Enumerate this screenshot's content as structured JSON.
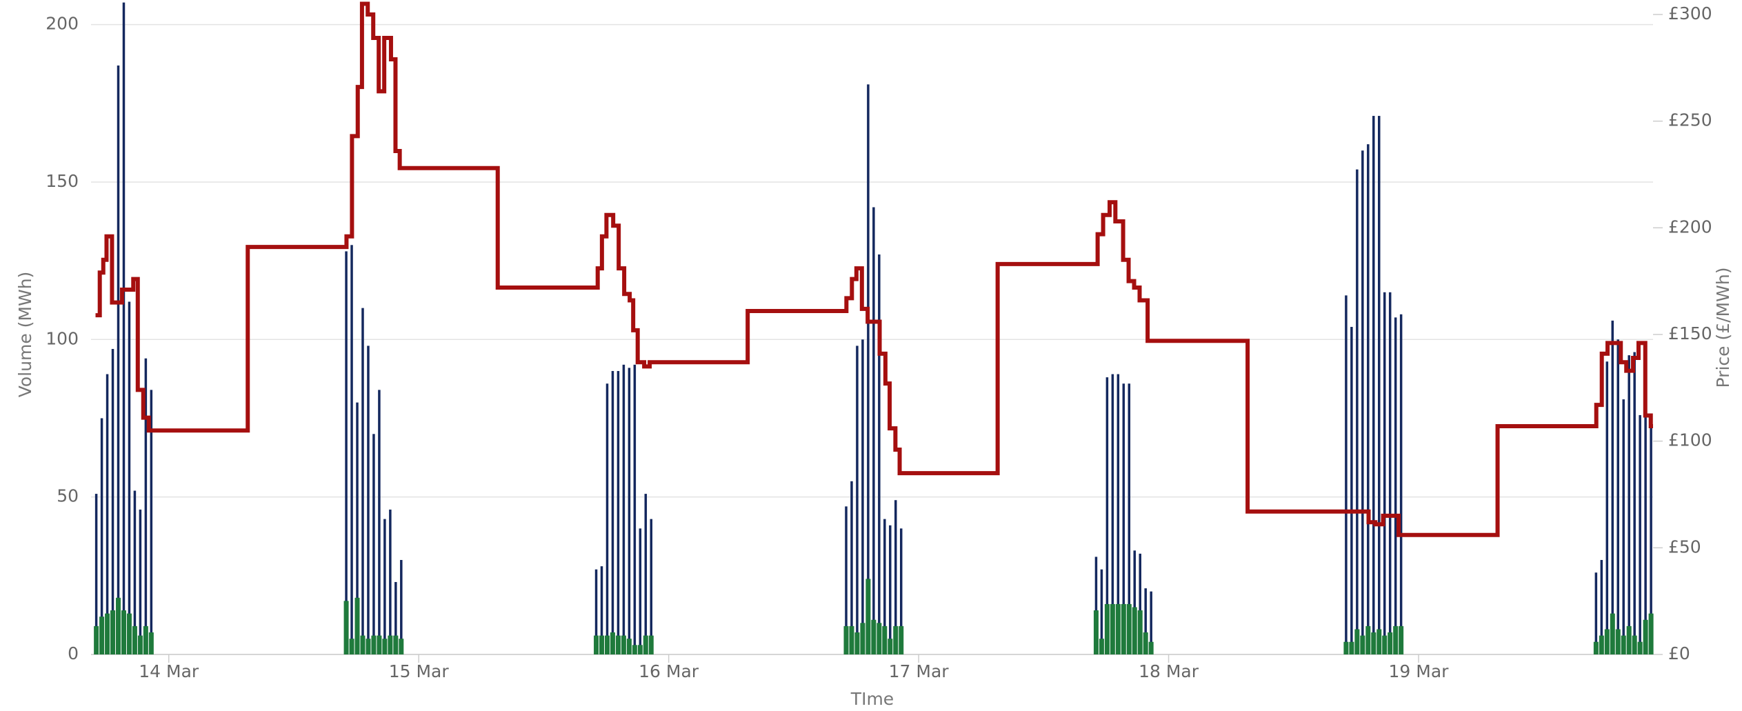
{
  "chart_data": {
    "type": "bar",
    "xlabel": "TIme",
    "ylabel": "Volume (MWh)",
    "y2label": "Price (£/MWh)",
    "xlim": [
      -0.311,
      5.938
    ],
    "xticks": [
      {
        "value": 0,
        "label": "14 Mar"
      },
      {
        "value": 1,
        "label": "15 Mar"
      },
      {
        "value": 2,
        "label": "16 Mar"
      },
      {
        "value": 3,
        "label": "17 Mar"
      },
      {
        "value": 4,
        "label": "18 Mar"
      },
      {
        "value": 5,
        "label": "19 Mar"
      }
    ],
    "ylim": [
      0,
      203.2
    ],
    "yticks": [
      0,
      50,
      100,
      150,
      200
    ],
    "y2lim": [
      0,
      300
    ],
    "y2ticks": [
      {
        "value": 0,
        "label": "£0"
      },
      {
        "value": 50,
        "label": "£50"
      },
      {
        "value": 100,
        "label": "£100"
      },
      {
        "value": 150,
        "label": "£150"
      },
      {
        "value": 200,
        "label": "£200"
      },
      {
        "value": 250,
        "label": "£250"
      },
      {
        "value": 300,
        "label": "£300"
      }
    ],
    "grid": true,
    "x": [
      -0.29,
      -0.268,
      -0.246,
      -0.224,
      -0.202,
      -0.18,
      -0.158,
      -0.136,
      -0.114,
      -0.092,
      -0.07,
      0.71,
      0.732,
      0.754,
      0.776,
      0.798,
      0.82,
      0.842,
      0.864,
      0.886,
      0.908,
      0.93,
      1.71,
      1.732,
      1.754,
      1.776,
      1.798,
      1.82,
      1.842,
      1.864,
      1.886,
      1.908,
      1.93,
      2.71,
      2.732,
      2.754,
      2.776,
      2.798,
      2.82,
      2.842,
      2.864,
      2.886,
      2.908,
      2.93,
      3.71,
      3.732,
      3.754,
      3.776,
      3.798,
      3.82,
      3.842,
      3.864,
      3.886,
      3.908,
      3.93,
      4.71,
      4.732,
      4.754,
      4.776,
      4.798,
      4.82,
      4.842,
      4.864,
      4.886,
      4.908,
      4.93,
      5.71,
      5.732,
      5.754,
      5.776,
      5.798,
      5.82,
      5.842,
      5.864,
      5.886,
      5.908,
      5.93
    ],
    "series": [
      {
        "type": "bar",
        "color": "#14285e",
        "values": [
          51,
          75,
          89,
          97,
          187,
          207,
          112,
          52,
          46,
          94,
          84,
          128,
          130,
          80,
          110,
          98,
          70,
          84,
          43,
          46,
          23,
          30,
          27,
          28,
          86,
          90,
          90,
          92,
          91,
          92,
          40,
          51,
          43,
          47,
          55,
          98,
          100,
          181,
          142,
          127,
          43,
          41,
          49,
          40,
          31,
          27,
          88,
          89,
          89,
          86,
          86,
          33,
          32,
          21,
          20,
          114,
          104,
          154,
          160,
          162,
          171,
          171,
          115,
          115,
          107,
          108,
          26,
          30,
          93,
          106,
          100,
          81,
          95,
          96,
          76,
          95,
          75
        ]
      },
      {
        "type": "bar",
        "color": "#1f7a3c",
        "values": [
          9,
          12,
          13,
          14,
          18,
          14,
          13,
          9,
          6,
          9,
          7,
          17,
          5,
          18,
          6,
          5,
          6,
          6,
          5,
          6,
          6,
          5,
          6,
          6,
          6,
          7,
          6,
          6,
          5,
          3,
          3,
          6,
          6,
          9,
          9,
          7,
          10,
          24,
          11,
          10,
          9,
          5,
          9,
          9,
          14,
          5,
          16,
          16,
          16,
          16,
          16,
          15,
          14,
          7,
          4,
          4,
          4,
          8,
          6,
          9,
          7,
          8,
          6,
          7,
          9,
          9,
          4,
          6,
          8,
          13,
          8,
          6,
          9,
          6,
          4,
          11,
          13
        ]
      },
      {
        "type": "step",
        "axis": "y2",
        "color": "#a50f0f",
        "x": [
          -0.293,
          -0.276,
          -0.262,
          -0.249,
          -0.227,
          -0.187,
          -0.142,
          -0.124,
          -0.102,
          -0.08,
          0.316,
          0.711,
          0.733,
          0.756,
          0.773,
          0.796,
          0.818,
          0.84,
          0.862,
          0.889,
          0.907,
          0.924,
          1.316,
          1.716,
          1.733,
          1.751,
          1.778,
          1.8,
          1.822,
          1.844,
          1.858,
          1.876,
          1.902,
          1.924,
          2.316,
          2.711,
          2.733,
          2.751,
          2.773,
          2.796,
          2.844,
          2.867,
          2.884,
          2.907,
          2.924,
          3.316,
          3.716,
          3.738,
          3.764,
          3.787,
          3.818,
          3.84,
          3.862,
          3.884,
          3.916,
          4.316,
          4.8,
          4.827,
          4.858,
          4.92,
          5.316,
          5.711,
          5.733,
          5.756,
          5.809,
          5.831,
          5.858,
          5.88,
          5.907,
          5.929
        ],
        "values": [
          159,
          179,
          185,
          196,
          165,
          171,
          176,
          124,
          111,
          105,
          191,
          196,
          243,
          266,
          305,
          300,
          289,
          264,
          289,
          279,
          236,
          228,
          172,
          181,
          196,
          206,
          201,
          181,
          169,
          166,
          152,
          137,
          135,
          137,
          161,
          167,
          176,
          181,
          162,
          156,
          141,
          127,
          106,
          96,
          85,
          183,
          197,
          206,
          212,
          203,
          185,
          175,
          172,
          166,
          147,
          67,
          62,
          61,
          65,
          56,
          107,
          117,
          141,
          146,
          137,
          133,
          139,
          146,
          112,
          107
        ]
      }
    ]
  }
}
